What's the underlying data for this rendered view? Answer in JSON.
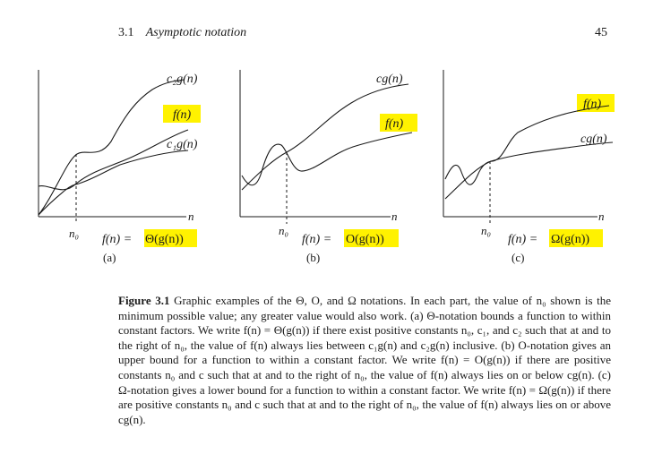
{
  "header": {
    "section_number": "3.1",
    "section_title": "Asymptotic notation",
    "page_number": "45"
  },
  "panels": [
    {
      "id": "a",
      "upper_label": "c₂g(n)",
      "middle_label": "f(n)",
      "lower_label": "c₁g(n)",
      "axis_label": "n",
      "threshold_label": "n₀",
      "formula_prefix": "f(n) = ",
      "formula_highlight": "Θ(g(n))",
      "sub_label": "(a)"
    },
    {
      "id": "b",
      "upper_label": "cg(n)",
      "middle_label": "f(n)",
      "axis_label": "n",
      "threshold_label": "n₀",
      "formula_prefix": "f(n) = ",
      "formula_highlight": "O(g(n))",
      "sub_label": "(b)"
    },
    {
      "id": "c",
      "upper_label": "f(n)",
      "middle_label": "cg(n)",
      "axis_label": "n",
      "threshold_label": "n₀",
      "formula_prefix": "f(n) = ",
      "formula_highlight": "Ω(g(n))",
      "sub_label": "(c)"
    }
  ],
  "caption": {
    "lead": "Figure 3.1",
    "text": "Graphic examples of the Θ, O, and Ω notations. In each part, the value of n₀ shown is the minimum possible value; any greater value would also work. (a) Θ-notation bounds a function to within constant factors. We write f(n) = Θ(g(n)) if there exist positive constants n₀, c₁, and c₂ such that at and to the right of n₀, the value of f(n) always lies between c₁g(n) and c₂g(n) inclusive. (b) O-notation gives an upper bound for a function to within a constant factor. We write f(n) = O(g(n)) if there are positive constants n₀ and c such that at and to the right of n₀, the value of f(n) always lies on or below cg(n). (c) Ω-notation gives a lower bound for a function to within a constant factor. We write f(n) = Ω(g(n)) if there are positive constants n₀ and c such that at and to the right of n₀, the value of f(n) always lies on or above cg(n)."
  },
  "colors": {
    "highlight": "#fff200",
    "ink": "#1a1a1a"
  }
}
